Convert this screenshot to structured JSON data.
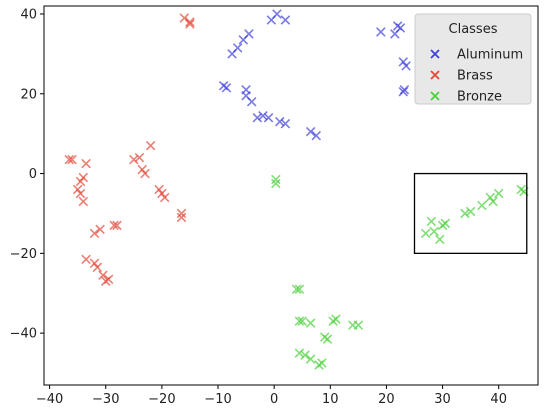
{
  "chart_data": {
    "type": "scatter",
    "xlim": [
      -41,
      47
    ],
    "ylim": [
      -53,
      42
    ],
    "xticks": [
      -40,
      -30,
      -20,
      -10,
      0,
      10,
      20,
      30,
      40
    ],
    "yticks": [
      40,
      20,
      0,
      -20,
      -40
    ],
    "grid": false,
    "marker": "x",
    "legend": {
      "title": "Classes",
      "placement": "top-right"
    },
    "highlight_box": {
      "x0": 25,
      "y0": -20,
      "x1": 45,
      "y1": 0,
      "color": "#000000"
    },
    "series": [
      {
        "name": "Aluminum",
        "color": "#4040dd",
        "points": [
          [
            0.5,
            40
          ],
          [
            -0.5,
            38.5
          ],
          [
            2,
            38.5
          ],
          [
            -4.5,
            35
          ],
          [
            -5.5,
            33.5
          ],
          [
            -6.5,
            31.5
          ],
          [
            -7.5,
            30
          ],
          [
            -9,
            22
          ],
          [
            -8.5,
            21.5
          ],
          [
            -5,
            21
          ],
          [
            -5,
            19.5
          ],
          [
            -4,
            18
          ],
          [
            -3,
            14
          ],
          [
            -2,
            14.5
          ],
          [
            -1,
            14
          ],
          [
            1,
            13
          ],
          [
            2,
            12.5
          ],
          [
            6.5,
            10.5
          ],
          [
            7.5,
            9.5
          ],
          [
            19,
            35.5
          ],
          [
            21.5,
            35
          ],
          [
            22,
            37
          ],
          [
            22.5,
            36.5
          ],
          [
            23,
            28
          ],
          [
            23.5,
            27
          ],
          [
            23.2,
            21
          ],
          [
            23,
            20.5
          ]
        ]
      },
      {
        "name": "Brass",
        "color": "#e04a3a",
        "points": [
          [
            -16,
            39
          ],
          [
            -15,
            38
          ],
          [
            -15,
            37.5
          ],
          [
            -36.5,
            3.5
          ],
          [
            -36,
            3.5
          ],
          [
            -33.5,
            2.5
          ],
          [
            -34,
            -1
          ],
          [
            -34.5,
            -2
          ],
          [
            -35,
            -4
          ],
          [
            -34.5,
            -5
          ],
          [
            -34,
            -7
          ],
          [
            -32,
            -15
          ],
          [
            -31,
            -14
          ],
          [
            -28.5,
            -13
          ],
          [
            -28,
            -13
          ],
          [
            -33.5,
            -21.5
          ],
          [
            -32,
            -22.5
          ],
          [
            -31.5,
            -23.5
          ],
          [
            -30.5,
            -25.5
          ],
          [
            -30,
            -27
          ],
          [
            -29.5,
            -26.5
          ],
          [
            -25,
            3.5
          ],
          [
            -24,
            4
          ],
          [
            -23.5,
            1
          ],
          [
            -23,
            0
          ],
          [
            -22,
            7
          ],
          [
            -20.5,
            -4
          ],
          [
            -20,
            -5
          ],
          [
            -19.5,
            -6
          ],
          [
            -16.5,
            -10
          ],
          [
            -16.5,
            -11
          ]
        ]
      },
      {
        "name": "Bronze",
        "color": "#4ad03a",
        "points": [
          [
            0.3,
            -1.5
          ],
          [
            0.3,
            -2.5
          ],
          [
            27,
            -15
          ],
          [
            28,
            -12
          ],
          [
            28.5,
            -14.5
          ],
          [
            29.5,
            -16.5
          ],
          [
            30,
            -13
          ],
          [
            30.5,
            -12.5
          ],
          [
            34,
            -10
          ],
          [
            35,
            -9.5
          ],
          [
            37,
            -8
          ],
          [
            38.5,
            -6
          ],
          [
            39,
            -7
          ],
          [
            40,
            -5
          ],
          [
            44,
            -4
          ],
          [
            44.5,
            -4.5
          ],
          [
            4,
            -29
          ],
          [
            4.5,
            -29
          ],
          [
            4.5,
            -37
          ],
          [
            5,
            -37
          ],
          [
            6.5,
            -37.5
          ],
          [
            4.5,
            -45
          ],
          [
            5.5,
            -45.5
          ],
          [
            6.5,
            -46.5
          ],
          [
            8,
            -48
          ],
          [
            8.5,
            -47.5
          ],
          [
            9,
            -41
          ],
          [
            9.5,
            -41.5
          ],
          [
            10.5,
            -37
          ],
          [
            11,
            -36.5
          ],
          [
            14,
            -38
          ],
          [
            15,
            -38
          ]
        ]
      }
    ]
  }
}
